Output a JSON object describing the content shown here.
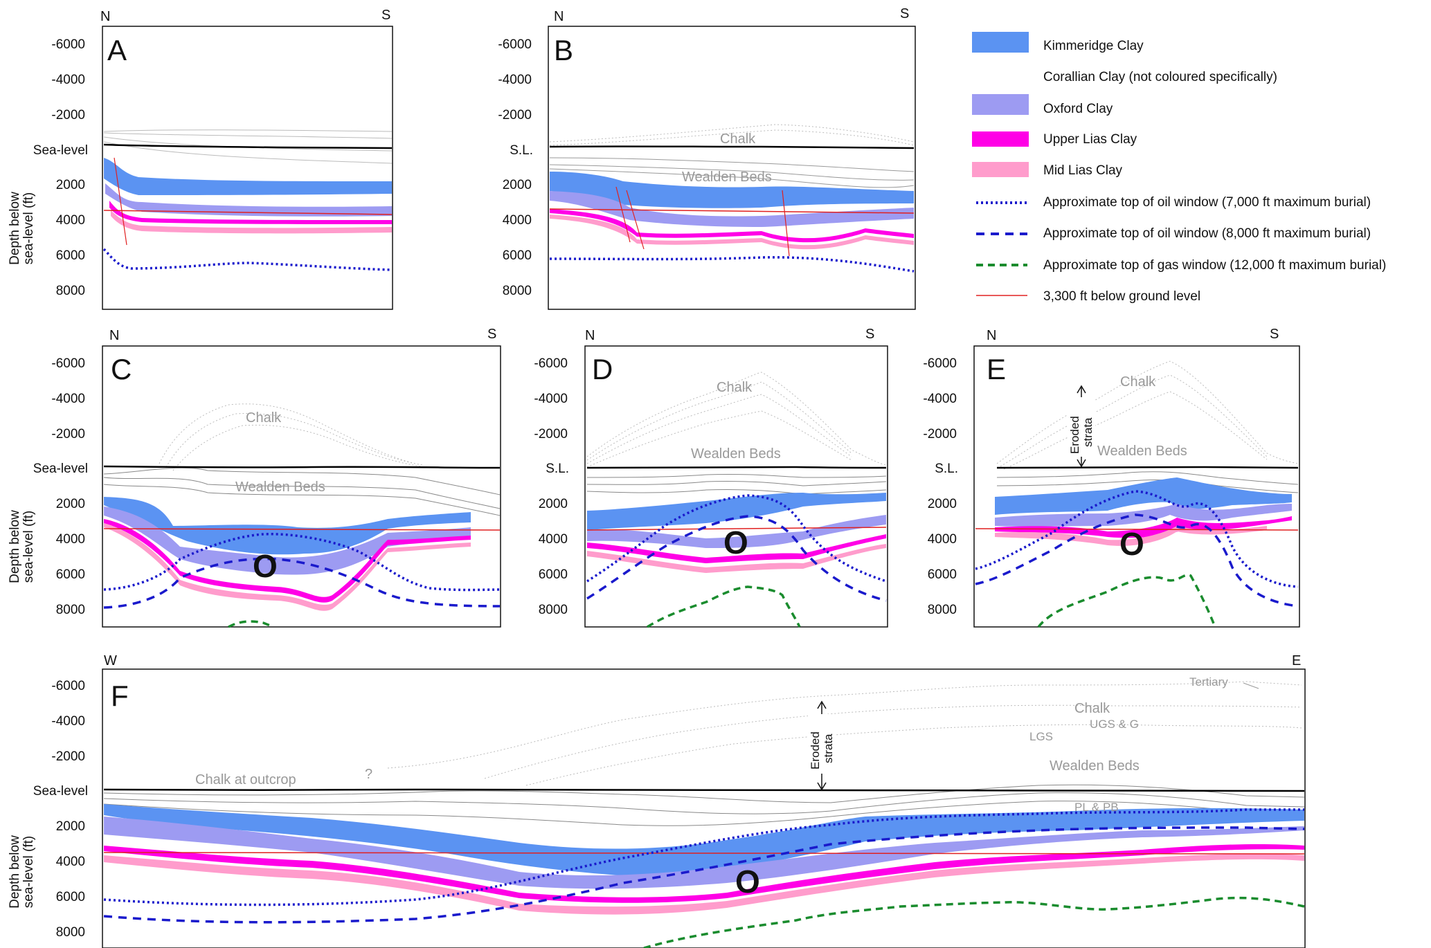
{
  "y_ticks": [
    "-6000",
    "-4000",
    "-2000",
    "2000",
    "4000",
    "6000",
    "8000"
  ],
  "sea_level_long": "Sea-level",
  "sea_level_short": "S.L.",
  "y_axis_label_1": "Depth below",
  "y_axis_label_2": "sea-level (ft)",
  "oil_marker": "O",
  "eroded_1": "Eroded",
  "eroded_2": "strata",
  "panels": {
    "A": {
      "label": "A",
      "left_dir": "N",
      "right_dir": "S"
    },
    "B": {
      "label": "B",
      "left_dir": "N",
      "right_dir": "S",
      "formations": [
        "Chalk",
        "Wealden Beds"
      ]
    },
    "C": {
      "label": "C",
      "left_dir": "N",
      "right_dir": "S",
      "formations": [
        "Chalk",
        "Wealden Beds"
      ]
    },
    "D": {
      "label": "D",
      "left_dir": "N",
      "right_dir": "S",
      "formations": [
        "Chalk",
        "Wealden Beds"
      ]
    },
    "E": {
      "label": "E",
      "left_dir": "N",
      "right_dir": "S",
      "formations": [
        "Chalk",
        "Wealden Beds"
      ]
    },
    "F": {
      "label": "F",
      "left_dir": "W",
      "right_dir": "E",
      "formations": [
        "Chalk at outcrop",
        "?",
        "Tertiary",
        "Chalk",
        "UGS & G",
        "LGS",
        "Wealden Beds",
        "PL & PB"
      ]
    }
  },
  "legend": [
    {
      "label": "Kimmeridge Clay",
      "color": "#5b93f2"
    },
    {
      "label": "Corallian Clay (not coloured specifically)",
      "color": "none"
    },
    {
      "label": "Oxford Clay",
      "color": "#9d9bf2"
    },
    {
      "label": "Upper Lias Clay",
      "color": "#ff00e6"
    },
    {
      "label": "Mid Lias Clay",
      "color": "#ff9ccc"
    },
    {
      "label": "Approximate top of oil window (7,000 ft maximum burial)",
      "color": "#1a1acc"
    },
    {
      "label": "Approximate top of oil window (8,000 ft maximum burial)",
      "color": "#1a1acc"
    },
    {
      "label": "Approximate top of gas window (12,000 ft maximum burial)",
      "color": "#1a8c2e"
    },
    {
      "label": "3,300 ft below ground level",
      "color": "#e02020"
    }
  ]
}
